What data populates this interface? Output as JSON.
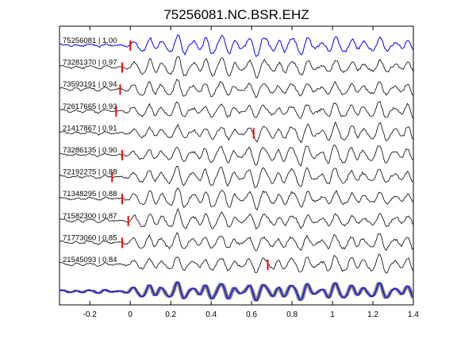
{
  "chart_data": {
    "type": "line",
    "title": "75256081.NC.BSR.EHZ",
    "xlabel": "",
    "ylabel": "",
    "xlim": [
      -0.35,
      1.4
    ],
    "xticks": [
      -0.2,
      0,
      0.2,
      0.4,
      0.6,
      0.8,
      1,
      1.2,
      1.4
    ],
    "xtick_labels": [
      "-0.2",
      "0",
      "0.2",
      "0.4",
      "0.6",
      "0.8",
      "1",
      "1.2",
      "1.4"
    ],
    "grid": false,
    "colors": {
      "reference": "#0000ff",
      "trace": "#000000",
      "stack_trace": "#808080",
      "pick": "#ff0000"
    },
    "series": [
      {
        "label": "75256081 | 1.00",
        "id": "75256081",
        "correlation": 1.0,
        "pick_time": 0.0,
        "reference": true
      },
      {
        "label": "73281370 | 0.97",
        "id": "73281370",
        "correlation": 0.97,
        "pick_time": -0.04
      },
      {
        "label": "73593191 | 0.94",
        "id": "73593191",
        "correlation": 0.94,
        "pick_time": -0.05
      },
      {
        "label": "72617665 | 0.93",
        "id": "72617665",
        "correlation": 0.93,
        "pick_time": -0.07
      },
      {
        "label": "21417867 | 0.91",
        "id": "21417867",
        "correlation": 0.91,
        "pick_time": 0.61
      },
      {
        "label": "73286135 | 0.90",
        "id": "73286135",
        "correlation": 0.9,
        "pick_time": -0.04
      },
      {
        "label": "72192275 | 0.88",
        "id": "72192275",
        "correlation": 0.88,
        "pick_time": -0.09
      },
      {
        "label": "71348295 | 0.88",
        "id": "71348295",
        "correlation": 0.88,
        "pick_time": -0.04
      },
      {
        "label": "71582300 | 0.87",
        "id": "71582300",
        "correlation": 0.87,
        "pick_time": -0.01
      },
      {
        "label": "71773060 | 0.85",
        "id": "71773060",
        "correlation": 0.85,
        "pick_time": -0.04
      },
      {
        "label": "21545093 | 0.84",
        "id": "21545093",
        "correlation": 0.84,
        "pick_time": 0.68
      }
    ],
    "stack": {
      "overlay_count": 10
    }
  }
}
